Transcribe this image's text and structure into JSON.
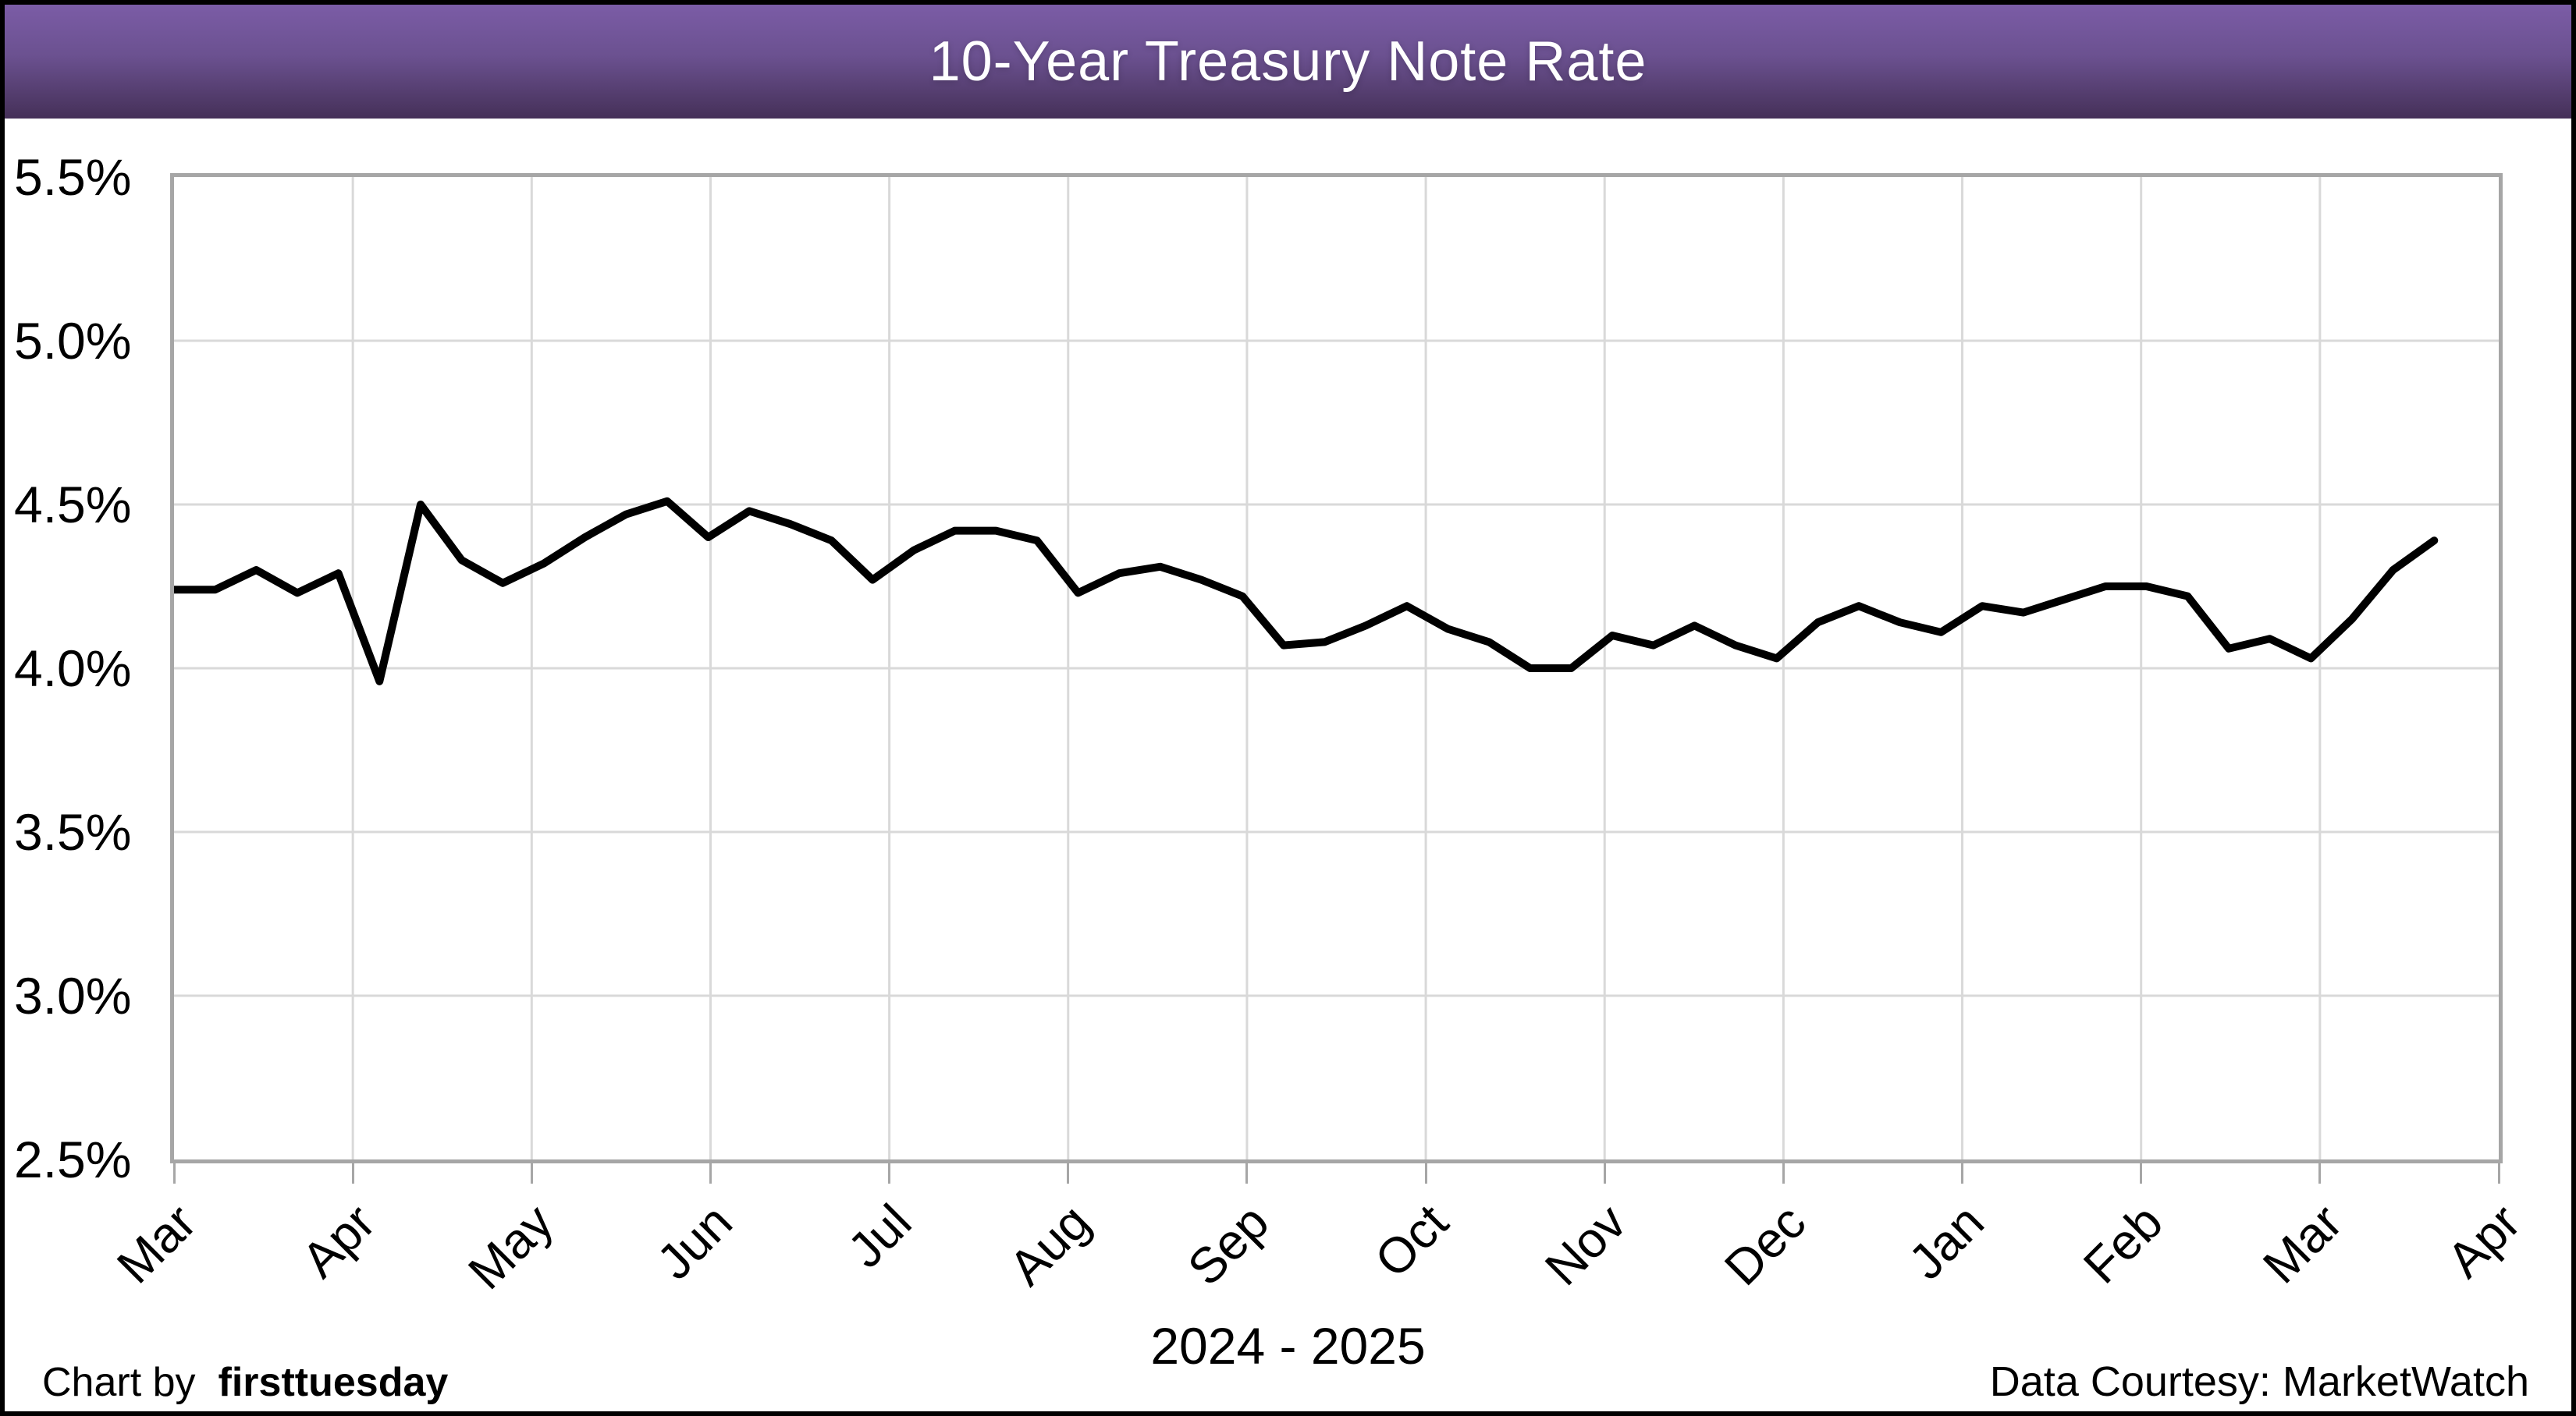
{
  "header": {
    "title": "10-Year Treasury Note Rate"
  },
  "y_axis": {
    "labels": [
      "5.5%",
      "5.0%",
      "4.5%",
      "4.0%",
      "3.5%",
      "3.0%",
      "2.5%"
    ]
  },
  "x_axis": {
    "labels": [
      "Mar",
      "Apr",
      "May",
      "Jun",
      "Jul",
      "Aug",
      "Sep",
      "Oct",
      "Nov",
      "Dec",
      "Jan",
      "Feb",
      "Mar",
      "Apr"
    ],
    "subtitle": "2024 - 2025"
  },
  "footer": {
    "credit_prefix": "Chart by",
    "credit_brand": "firsttuesday",
    "data_courtesy": "Data Courtesy: MarketWatch"
  },
  "colors": {
    "banner_top": "#7B5CA6",
    "banner_bottom": "#453058",
    "title_text": "#FFFFFF",
    "line": "#000000",
    "gridline": "#D9D9D9",
    "axis": "#A6A6A6",
    "text": "#000000",
    "background": "#FFFFFF",
    "frame": "#000000"
  },
  "chart_data": {
    "type": "line",
    "title": "10-Year Treasury Note Rate",
    "xlabel": "2024 - 2025",
    "ylabel": "",
    "ylim": [
      2.5,
      5.5
    ],
    "y_tick_step": 0.5,
    "y_tick_labels": [
      "5.5%",
      "5.0%",
      "4.5%",
      "4.0%",
      "3.5%",
      "3.0%",
      "2.5%"
    ],
    "x_tick_labels": [
      "Mar",
      "Apr",
      "May",
      "Jun",
      "Jul",
      "Aug",
      "Sep",
      "Oct",
      "Nov",
      "Dec",
      "Jan",
      "Feb",
      "Mar",
      "Apr"
    ],
    "grid": true,
    "legend_position": "none",
    "source": "MarketWatch",
    "series": [
      {
        "name": "10-Year Treasury Note Rate (weekly, %)",
        "dates": [
          "2024-03-01",
          "2024-03-08",
          "2024-03-15",
          "2024-03-22",
          "2024-03-29",
          "2024-04-05",
          "2024-04-12",
          "2024-04-19",
          "2024-04-26",
          "2024-05-03",
          "2024-05-10",
          "2024-05-17",
          "2024-05-24",
          "2024-05-31",
          "2024-06-07",
          "2024-06-14",
          "2024-06-21",
          "2024-06-28",
          "2024-07-05",
          "2024-07-12",
          "2024-07-19",
          "2024-07-26",
          "2024-08-02",
          "2024-08-09",
          "2024-08-16",
          "2024-08-23",
          "2024-08-30",
          "2024-09-06",
          "2024-09-13",
          "2024-09-20",
          "2024-09-27",
          "2024-10-04",
          "2024-10-11",
          "2024-10-18",
          "2024-10-25",
          "2024-11-01",
          "2024-11-08",
          "2024-11-15",
          "2024-11-22",
          "2024-11-29",
          "2024-12-06",
          "2024-12-13",
          "2024-12-20",
          "2024-12-27",
          "2025-01-03",
          "2025-01-10",
          "2025-01-17",
          "2025-01-24",
          "2025-01-31",
          "2025-02-07",
          "2025-02-14",
          "2025-02-21",
          "2025-02-28",
          "2025-03-07",
          "2025-03-14",
          "2025-03-21"
        ],
        "values": [
          4.24,
          4.24,
          4.3,
          4.23,
          4.29,
          3.96,
          4.5,
          4.33,
          4.26,
          4.32,
          4.4,
          4.47,
          4.51,
          4.4,
          4.48,
          4.44,
          4.39,
          4.27,
          4.36,
          4.42,
          4.42,
          4.39,
          4.23,
          4.29,
          4.31,
          4.27,
          4.22,
          4.07,
          4.08,
          4.13,
          4.19,
          4.12,
          4.08,
          4.0,
          4.0,
          4.1,
          4.07,
          4.13,
          4.07,
          4.03,
          4.14,
          4.19,
          4.14,
          4.11,
          4.19,
          4.17,
          4.21,
          4.25,
          4.25,
          4.22,
          4.06,
          4.09,
          4.03,
          4.15,
          4.3,
          4.39
        ]
      }
    ]
  }
}
